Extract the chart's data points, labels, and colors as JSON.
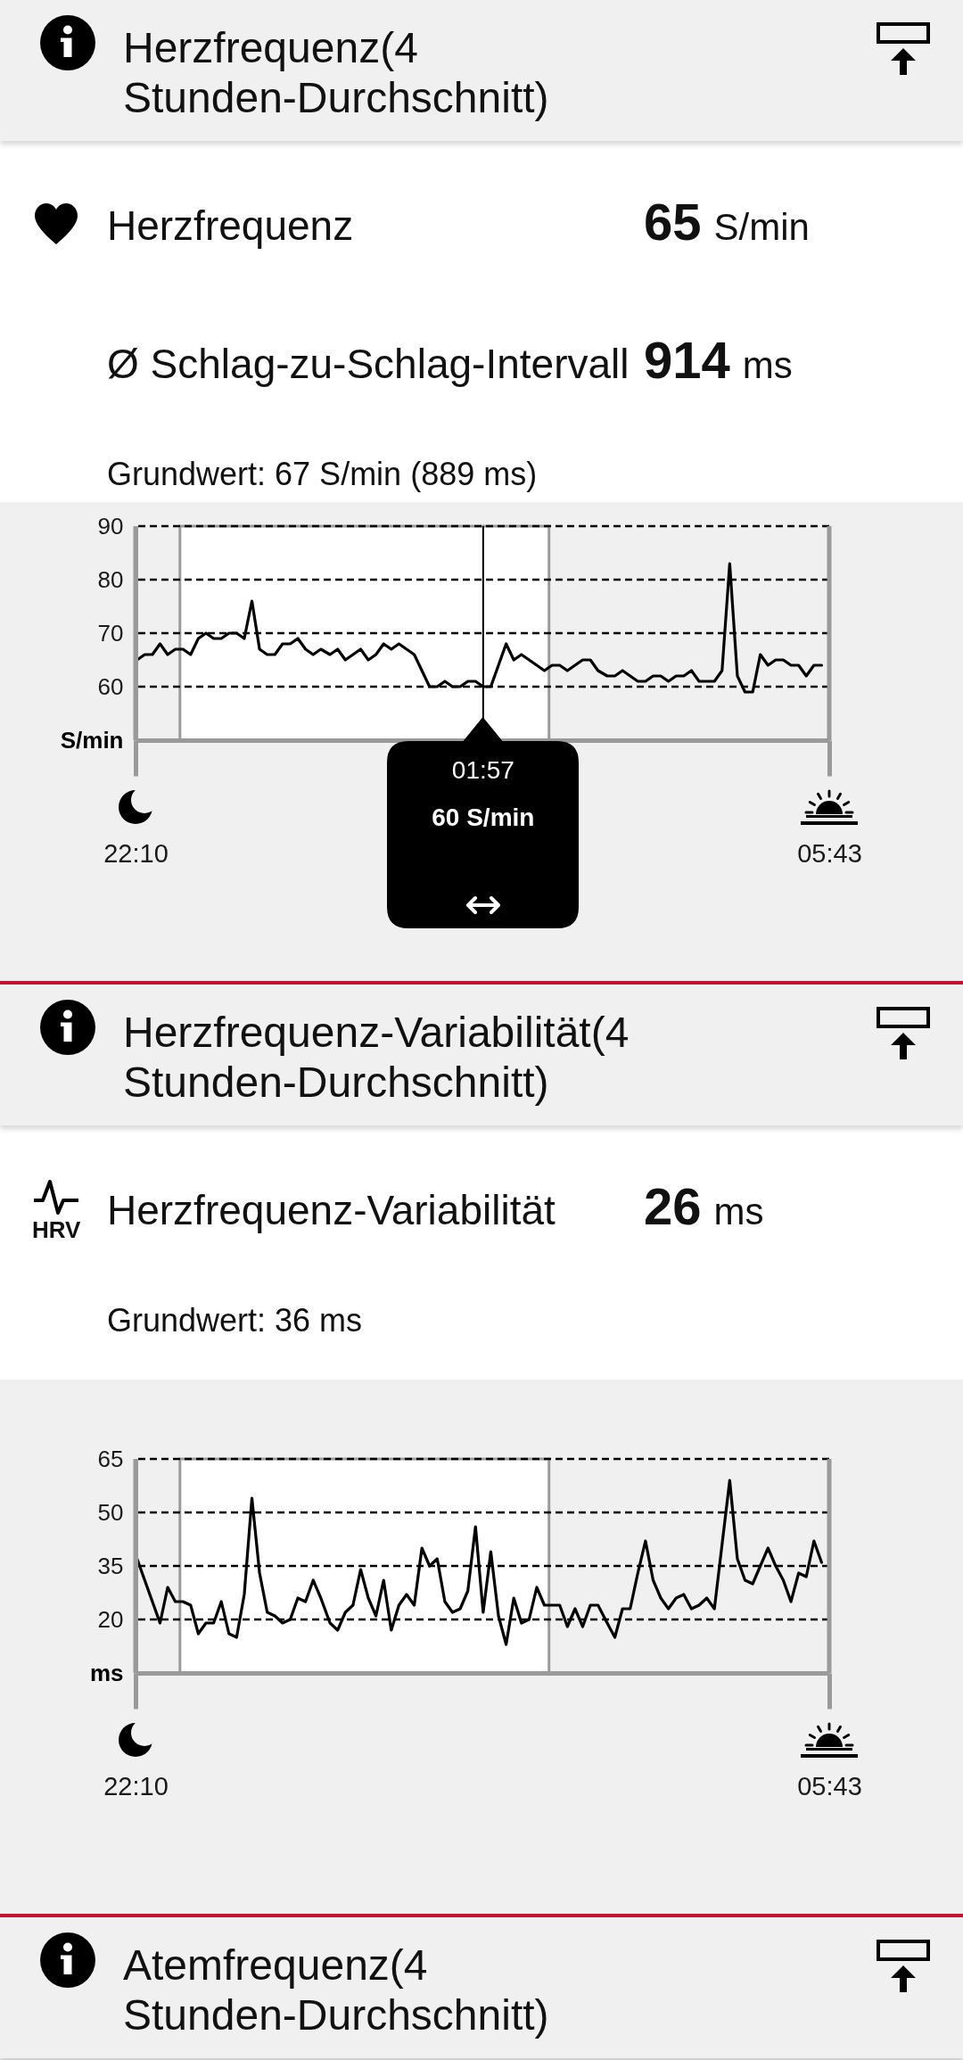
{
  "chart_data": [
    {
      "type": "other",
      "title": "Herzfrequenz(4 Stunden-Durchschnitt)",
      "annotations": [
        "Herzfrequenz",
        "65",
        "S/min",
        "Ø Schlag-zu-Schlag-Intervall",
        "914",
        "ms",
        "Grundwert: 67 S/min (889 ms)"
      ]
    },
    {
      "type": "line",
      "ylabel": "S/min",
      "x": [
        "--01-01T22:11",
        "--01-01T22:16",
        "--01-01T22:21",
        "--01-01T22:26",
        "--01-01T22:31",
        "--01-01T22:36",
        "--01-01T22:41",
        "--01-01T22:46",
        "--01-01T22:51",
        "--01-01T22:56",
        "--01-01T23:01",
        "--01-01T23:06",
        "--01-01T23:11",
        "--01-01T23:16",
        "--01-01T23:21",
        "--01-01T23:26",
        "--01-01T23:31",
        "--01-01T23:36",
        "--01-01T23:41",
        "--01-01T23:46",
        "--01-01T23:51",
        "--01-01T23:56",
        "--01-02T00:01",
        "--01-02T00:06",
        "--01-02T00:11",
        "--01-02T00:17",
        "--01-02T00:22",
        "--01-02T00:27",
        "--01-02T00:32",
        "--01-02T00:37",
        "--01-02T00:42",
        "--01-02T00:47",
        "--01-02T00:52",
        "--01-02T00:57",
        "--01-02T01:02",
        "--01-02T01:07",
        "--01-02T01:12",
        "--01-02T01:17",
        "--01-02T01:22",
        "--01-02T01:27",
        "--01-02T01:32",
        "--01-02T01:37",
        "--01-02T01:42",
        "--01-02T01:47",
        "--01-02T01:52",
        "--01-02T01:57",
        "--01-02T02:02",
        "--01-02T02:07",
        "--01-02T02:12",
        "--01-02T02:17",
        "--01-02T02:22",
        "--01-02T02:27",
        "--01-02T02:32",
        "--01-02T02:37",
        "--01-02T02:42",
        "--01-02T02:47",
        "--01-02T02:52",
        "--01-02T02:57",
        "--01-02T03:02",
        "--01-02T03:07",
        "--01-02T03:12",
        "--01-02T03:18",
        "--01-02T03:23",
        "--01-02T03:28",
        "--01-02T03:33",
        "--01-02T03:38",
        "--01-02T03:43",
        "--01-02T03:48",
        "--01-02T03:53",
        "--01-02T03:58",
        "--01-02T04:03",
        "--01-02T04:08",
        "--01-02T04:13",
        "--01-02T04:18",
        "--01-02T04:23",
        "--01-02T04:28",
        "--01-02T04:33",
        "--01-02T04:38",
        "--01-02T04:43",
        "--01-02T04:48",
        "--01-02T04:53",
        "--01-02T04:58",
        "--01-02T05:03",
        "--01-02T05:08",
        "--01-02T05:13",
        "--01-02T05:18",
        "--01-02T05:23",
        "--01-02T05:28",
        "--01-02T05:33",
        "--01-02T05:38"
      ],
      "values": [
        65,
        66,
        66,
        68,
        66,
        67,
        67,
        66,
        69,
        70,
        69,
        69,
        70,
        70,
        69,
        76,
        67,
        66,
        66,
        68,
        68,
        69,
        67,
        66,
        67,
        66,
        67,
        65,
        66,
        67,
        65,
        66,
        68,
        67,
        68,
        67,
        66,
        63,
        60,
        60,
        61,
        60,
        60,
        61,
        61,
        60,
        60,
        64,
        68,
        65,
        66,
        65,
        64,
        63,
        64,
        64,
        63,
        64,
        65,
        65,
        63,
        62,
        62,
        63,
        62,
        61,
        61,
        62,
        62,
        61,
        62,
        62,
        63,
        61,
        61,
        61,
        63,
        83,
        62,
        59,
        59,
        66,
        64,
        65,
        65,
        64,
        64,
        62,
        64,
        64
      ],
      "color": "#000000",
      "xlim": [
        "--01-01T22:10",
        "--01-02T05:43"
      ],
      "xticks": [
        {
          "value": "--01-01T22:10",
          "label": "22:10"
        },
        {
          "value": "--01-02T05:43",
          "label": "05:43"
        }
      ],
      "ylim": [
        50,
        90
      ],
      "yticks": [
        60,
        70,
        80,
        90
      ],
      "grid": true,
      "bands": [
        {
          "axis": "x",
          "from": "--01-01T22:39",
          "to": "--01-02T02:40",
          "color": "#ffffff"
        }
      ],
      "ref_lines": [
        {
          "axis": "x",
          "value": "--01-02T01:57",
          "label": "01:57",
          "color": "#000000"
        }
      ],
      "annotations": [
        "60 S/min"
      ]
    },
    {
      "type": "other",
      "title": "Herzfrequenz-Variabilität(4 Stunden-Durchschnitt)",
      "annotations": [
        "HRV",
        "Herzfrequenz-Variabilität",
        "26",
        "ms",
        "Grundwert: 36 ms"
      ]
    },
    {
      "type": "line",
      "ylabel": "ms",
      "x": [
        "--01-01T22:11",
        "--01-01T22:16",
        "--01-01T22:21",
        "--01-01T22:26",
        "--01-01T22:31",
        "--01-01T22:36",
        "--01-01T22:41",
        "--01-01T22:46",
        "--01-01T22:51",
        "--01-01T22:56",
        "--01-01T23:01",
        "--01-01T23:06",
        "--01-01T23:11",
        "--01-01T23:16",
        "--01-01T23:21",
        "--01-01T23:26",
        "--01-01T23:31",
        "--01-01T23:36",
        "--01-01T23:41",
        "--01-01T23:46",
        "--01-01T23:51",
        "--01-01T23:56",
        "--01-02T00:01",
        "--01-02T00:06",
        "--01-02T00:11",
        "--01-02T00:17",
        "--01-02T00:22",
        "--01-02T00:27",
        "--01-02T00:32",
        "--01-02T00:37",
        "--01-02T00:42",
        "--01-02T00:47",
        "--01-02T00:52",
        "--01-02T00:57",
        "--01-02T01:02",
        "--01-02T01:07",
        "--01-02T01:12",
        "--01-02T01:17",
        "--01-02T01:22",
        "--01-02T01:27",
        "--01-02T01:32",
        "--01-02T01:37",
        "--01-02T01:42",
        "--01-02T01:47",
        "--01-02T01:52",
        "--01-02T01:57",
        "--01-02T02:02",
        "--01-02T02:07",
        "--01-02T02:12",
        "--01-02T02:17",
        "--01-02T02:22",
        "--01-02T02:27",
        "--01-02T02:32",
        "--01-02T02:37",
        "--01-02T02:42",
        "--01-02T02:47",
        "--01-02T02:52",
        "--01-02T02:57",
        "--01-02T03:02",
        "--01-02T03:07",
        "--01-02T03:12",
        "--01-02T03:18",
        "--01-02T03:23",
        "--01-02T03:28",
        "--01-02T03:33",
        "--01-02T03:38",
        "--01-02T03:43",
        "--01-02T03:48",
        "--01-02T03:53",
        "--01-02T03:58",
        "--01-02T04:03",
        "--01-02T04:08",
        "--01-02T04:13",
        "--01-02T04:18",
        "--01-02T04:23",
        "--01-02T04:28",
        "--01-02T04:33",
        "--01-02T04:38",
        "--01-02T04:43",
        "--01-02T04:48",
        "--01-02T04:53",
        "--01-02T04:58",
        "--01-02T05:03",
        "--01-02T05:08",
        "--01-02T05:13",
        "--01-02T05:18",
        "--01-02T05:23",
        "--01-02T05:28",
        "--01-02T05:33",
        "--01-02T05:38"
      ],
      "values": [
        37,
        31,
        25,
        19,
        29,
        25,
        25,
        24,
        16,
        19,
        19,
        25,
        16,
        15,
        27,
        54,
        33,
        22,
        21,
        19,
        20,
        26,
        25,
        31,
        26,
        19,
        17,
        22,
        24,
        34,
        26,
        21,
        31,
        17,
        24,
        27,
        24,
        40,
        35,
        37,
        25,
        22,
        23,
        28,
        46,
        22,
        39,
        21,
        13,
        26,
        19,
        20,
        29,
        24,
        24,
        24,
        18,
        23,
        18,
        24,
        24,
        19,
        15,
        23,
        23,
        33,
        42,
        31,
        26,
        23,
        26,
        27,
        23,
        24,
        26,
        23,
        41,
        59,
        37,
        31,
        30,
        35,
        40,
        35,
        31,
        25,
        33,
        32,
        42,
        36
      ],
      "color": "#000000",
      "xlim": [
        "--01-01T22:10",
        "--01-02T05:43"
      ],
      "xticks": [
        {
          "value": "--01-01T22:10",
          "label": "22:10"
        },
        {
          "value": "--01-02T05:43",
          "label": "05:43"
        }
      ],
      "ylim": [
        5,
        65
      ],
      "yticks": [
        20,
        35,
        50,
        65
      ],
      "grid": true,
      "bands": [
        {
          "axis": "x",
          "from": "--01-01T22:39",
          "to": "--01-02T02:40",
          "color": "#ffffff"
        }
      ]
    },
    {
      "type": "other",
      "title": "Atemfrequenz(4 Stunden-Durchschnitt)"
    }
  ]
}
